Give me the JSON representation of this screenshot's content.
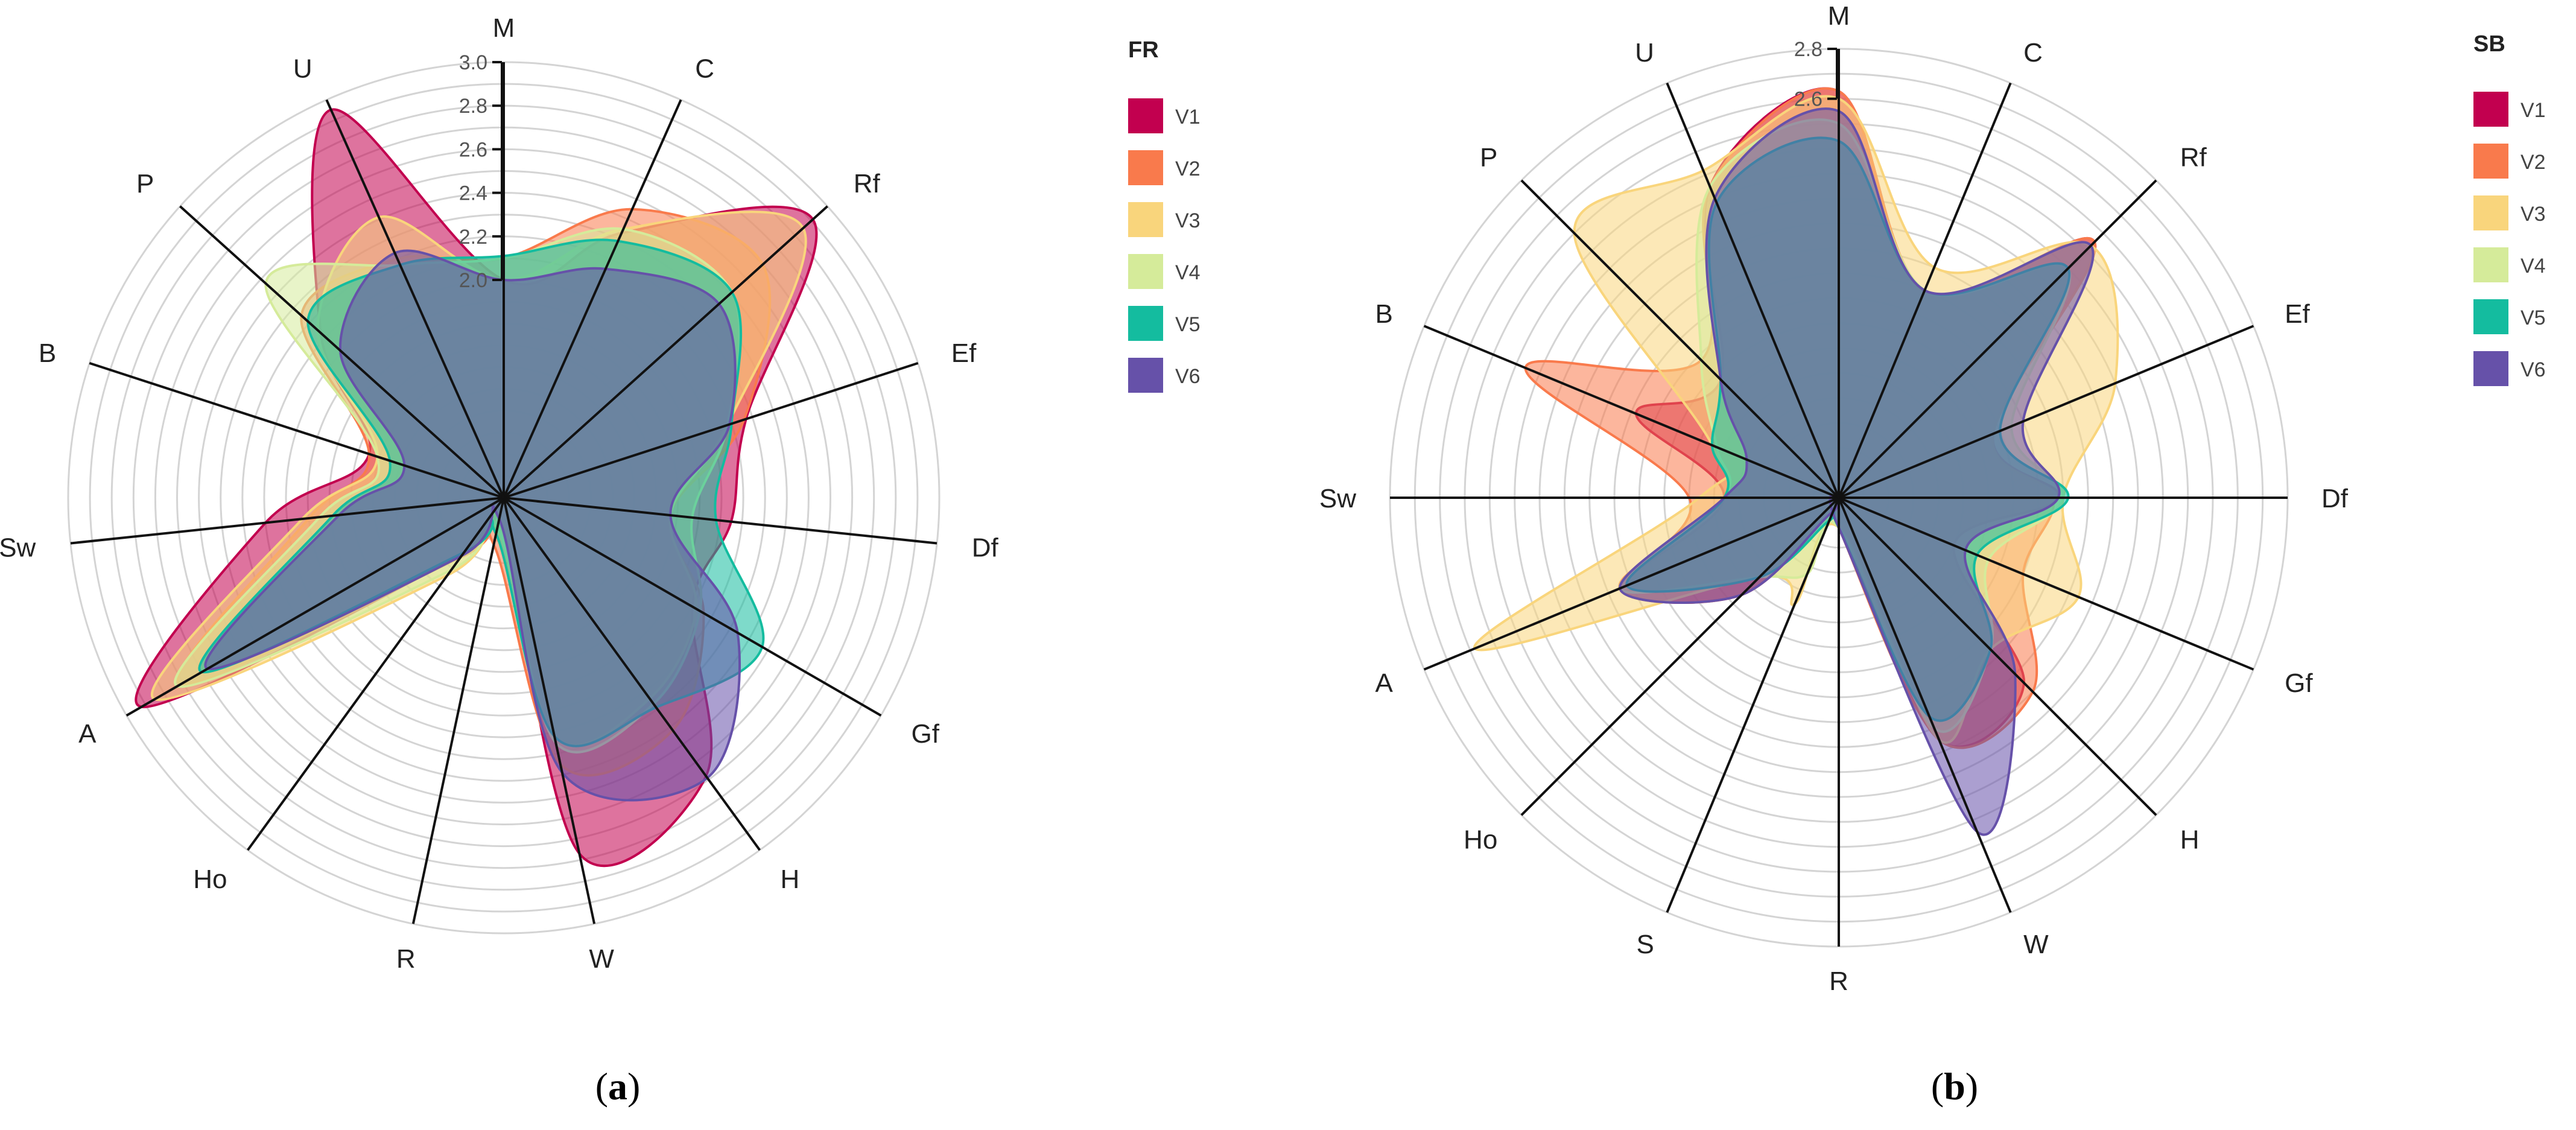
{
  "chart_data": [
    {
      "type": "radar",
      "panel_label": "a",
      "legend_title": "FR",
      "axes": [
        "M",
        "C",
        "Rf",
        "Ef",
        "Df",
        "Gf",
        "H",
        "W",
        "R",
        "Ho",
        "A",
        "Sw",
        "B",
        "P",
        "U"
      ],
      "scale": {
        "min": 1.0,
        "max": 3.0,
        "rings": 20
      },
      "tick_labels": [
        "2.0",
        "2.2",
        "2.4",
        "2.6",
        "2.8",
        "3.0"
      ],
      "series": [
        {
          "name": "V1",
          "color": "#c2004f",
          "values": [
            2.0,
            2.33,
            2.91,
            2.17,
            2.05,
            2.0,
            2.58,
            2.67,
            1.1,
            1.32,
            2.92,
            2.1,
            1.65,
            2.13,
            2.95
          ]
        },
        {
          "name": "V2",
          "color": "#f97a4c",
          "values": [
            2.1,
            2.45,
            2.6,
            2.16,
            1.77,
            2.06,
            2.32,
            2.25,
            1.22,
            1.34,
            2.71,
            1.9,
            1.65,
            2.25,
            2.2
          ]
        },
        {
          "name": "V3",
          "color": "#f9d57c",
          "values": [
            2.0,
            2.35,
            2.85,
            2.08,
            1.77,
            2.02,
            2.14,
            2.12,
            1.15,
            1.44,
            2.85,
            1.93,
            1.61,
            2.15,
            2.41
          ]
        },
        {
          "name": "V4",
          "color": "#d5eb9a",
          "values": [
            2.1,
            2.35,
            2.41,
            2.08,
            1.87,
            2.04,
            2.17,
            2.15,
            1.14,
            1.41,
            2.73,
            1.85,
            1.61,
            2.47,
            2.17
          ]
        },
        {
          "name": "V5",
          "color": "#14bc9f",
          "values": [
            2.11,
            2.29,
            2.41,
            2.1,
            1.98,
            2.37,
            2.19,
            2.12,
            1.17,
            1.31,
            2.6,
            1.79,
            1.55,
            2.21,
            2.17
          ]
        },
        {
          "name": "V6",
          "color": "#6651a9",
          "values": [
            2.0,
            2.15,
            2.33,
            2.09,
            1.77,
            2.24,
            2.59,
            2.29,
            1.1,
            1.33,
            2.57,
            1.76,
            1.48,
            2.01,
            2.23
          ]
        }
      ]
    },
    {
      "type": "radar",
      "panel_label": "b",
      "legend_title": "SB",
      "axes": [
        "M",
        "C",
        "Rf",
        "Ef",
        "Df",
        "Gf",
        "H",
        "W",
        "R",
        "S",
        "Ho",
        "A",
        "Sw",
        "B",
        "P",
        "U"
      ],
      "scale": {
        "min": 1.0,
        "max": 2.8,
        "rings": 18
      },
      "tick_labels": [
        "2.6",
        "2.8"
      ],
      "series": [
        {
          "name": "V1",
          "color": "#c2004f",
          "values": [
            2.63,
            1.9,
            2.45,
            1.67,
            1.88,
            1.5,
            2.05,
            2.05,
            1.12,
            1.06,
            1.55,
            1.95,
            1.46,
            1.88,
            1.67,
            2.35
          ]
        },
        {
          "name": "V2",
          "color": "#f97a4c",
          "values": [
            2.63,
            1.9,
            2.45,
            1.67,
            1.86,
            1.8,
            2.1,
            2.05,
            1.12,
            1.06,
            1.55,
            1.95,
            1.6,
            2.36,
            1.78,
            2.35
          ]
        },
        {
          "name": "V3",
          "color": "#f9d57c",
          "values": [
            2.6,
            2.0,
            2.43,
            2.2,
            1.9,
            2.04,
            1.86,
            2.05,
            1.12,
            1.46,
            1.45,
            2.58,
            1.56,
            1.55,
            2.5,
            2.42
          ]
        },
        {
          "name": "V4",
          "color": "#d5eb9a",
          "values": [
            2.5,
            1.9,
            2.3,
            1.75,
            1.9,
            1.65,
            1.86,
            2.0,
            1.12,
            1.33,
            1.45,
            1.95,
            1.46,
            1.53,
            1.78,
            2.35
          ]
        },
        {
          "name": "V5",
          "color": "#14bc9f",
          "values": [
            2.43,
            1.9,
            2.3,
            1.7,
            1.92,
            1.6,
            1.86,
            1.95,
            1.12,
            1.1,
            1.45,
            1.92,
            1.46,
            1.55,
            1.67,
            2.28
          ]
        },
        {
          "name": "V6",
          "color": "#6651a9",
          "values": [
            2.55,
            1.9,
            2.43,
            1.8,
            1.88,
            1.55,
            2.0,
            2.45,
            1.12,
            1.06,
            1.55,
            1.95,
            1.46,
            1.4,
            1.67,
            2.3
          ]
        }
      ]
    }
  ]
}
